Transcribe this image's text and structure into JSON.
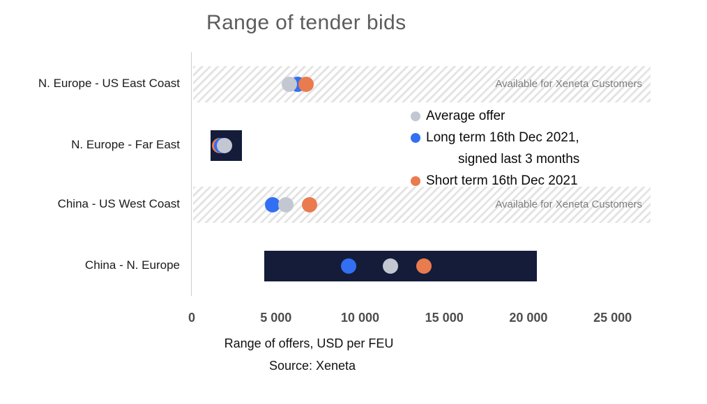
{
  "chart_data": {
    "type": "scatter",
    "title": "Range of tender bids",
    "xlabel": "Range of offers, USD per FEU",
    "source": "Source: Xeneta",
    "x_unit": "USD per FEU",
    "xlim": [
      0,
      27250
    ],
    "xticks": [
      0,
      5000,
      10000,
      15000,
      20000,
      25000
    ],
    "xtick_labels": [
      "0",
      "5 000",
      "10 000",
      "15 000",
      "20 000",
      "25 000"
    ],
    "grid": false,
    "legend_position": "center-right",
    "restricted_label": "Available for Xeneta Customers",
    "colors": {
      "bar_navy": "#141c3a",
      "hatch_gray": "#e4e4e4",
      "axis_line": "#cccccc",
      "tick_text": "#4d4d4d",
      "title_text": "#5c5c5c",
      "restricted_text": "#7d7d7d"
    },
    "series": [
      {
        "id": "average",
        "name": "Average offer",
        "color": "#c3c7d1",
        "legend_lines": [
          "Average offer"
        ]
      },
      {
        "id": "long_term",
        "name": "Long term 16th Dec 2021, signed last 3 months",
        "color": "#336ff2",
        "legend_lines": [
          "Long term 16th Dec 2021,",
          "signed last 3 months"
        ]
      },
      {
        "id": "short_term",
        "name": "Short term 16th Dec 2021",
        "color": "#ea7b4e",
        "legend_lines": [
          "Short term 16th Dec 2021"
        ]
      }
    ],
    "rows": [
      {
        "category": "N. Europe - US East Coast",
        "restricted": true,
        "points": [
          {
            "series": "long_term",
            "value": 6300
          },
          {
            "series": "average",
            "value": 5800
          },
          {
            "series": "short_term",
            "value": 6800
          }
        ]
      },
      {
        "category": "N. Europe - Far East",
        "restricted": false,
        "range": [
          1100,
          3000
        ],
        "points": [
          {
            "series": "short_term",
            "value": 1650
          },
          {
            "series": "long_term",
            "value": 1800
          },
          {
            "series": "average",
            "value": 1950
          }
        ]
      },
      {
        "category": "China - US West Coast",
        "restricted": true,
        "points": [
          {
            "series": "long_term",
            "value": 4800
          },
          {
            "series": "average",
            "value": 5600
          },
          {
            "series": "short_term",
            "value": 7000
          }
        ]
      },
      {
        "category": "China - N. Europe",
        "restricted": false,
        "range": [
          4300,
          20500
        ],
        "points": [
          {
            "series": "long_term",
            "value": 9300
          },
          {
            "series": "average",
            "value": 11800
          },
          {
            "series": "short_term",
            "value": 13800
          }
        ]
      }
    ]
  }
}
